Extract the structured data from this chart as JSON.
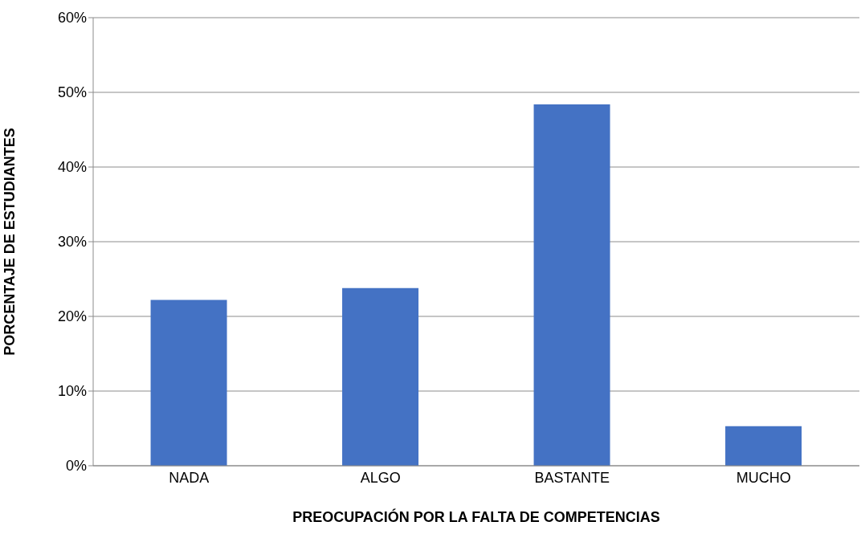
{
  "chart_data": {
    "type": "bar",
    "xlabel": "PREOCUPACIÓN POR LA FALTA DE COMPETENCIAS",
    "ylabel": "PORCENTAJE DE ESTUDIANTES",
    "categories": [
      "NADA",
      "ALGO",
      "BASTANTE",
      "MUCHO"
    ],
    "values": [
      22.2,
      23.8,
      48.4,
      5.3
    ],
    "color": "#4472c4",
    "ylim": [
      0,
      60
    ],
    "yticks": [
      {
        "value": 0,
        "label": "0%"
      },
      {
        "value": 10,
        "label": "10%"
      },
      {
        "value": 20,
        "label": "20%"
      },
      {
        "value": 30,
        "label": "30%"
      },
      {
        "value": 40,
        "label": "40%"
      },
      {
        "value": 50,
        "label": "50%"
      },
      {
        "value": 60,
        "label": "60%"
      }
    ],
    "grid": "y",
    "legend": false
  }
}
